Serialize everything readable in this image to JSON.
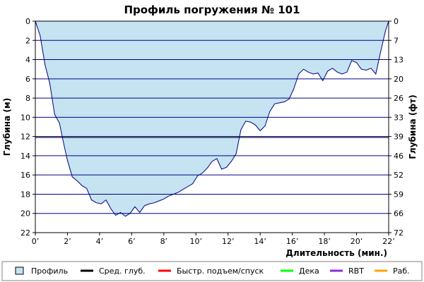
{
  "chart_data": {
    "type": "area",
    "title": "Профиль погружения № 101",
    "xlabel": "Длительность (мин.)",
    "ylabel_left": "Глубина (м)",
    "ylabel_right": "Глубина (фт)",
    "xlim": [
      0,
      22
    ],
    "ylim": [
      0,
      22
    ],
    "y_inverted": true,
    "grid": true,
    "x_ticks": [
      0,
      2,
      4,
      6,
      8,
      10,
      12,
      14,
      16,
      18,
      20,
      22
    ],
    "x_tick_labels": [
      "0’",
      "2’",
      "4’",
      "6’",
      "8’",
      "10’",
      "12’",
      "14’",
      "16’",
      "18’",
      "20’",
      "22’"
    ],
    "y_ticks": [
      0,
      2,
      4,
      6,
      8,
      10,
      12,
      14,
      16,
      18,
      20,
      22
    ],
    "y_tick_labels": [
      "0",
      "2",
      "4",
      "6",
      "8",
      "10",
      "12",
      "14",
      "16",
      "18",
      "20",
      "22"
    ],
    "y_right_tick_labels": [
      "0",
      "7",
      "13",
      "20",
      "26",
      "33",
      "39",
      "46",
      "52",
      "59",
      "66",
      "72"
    ],
    "average_depth": 12.1,
    "colors": {
      "profile_fill": "#c5e3f0",
      "profile_line": "#00007f",
      "grid": "#00008b",
      "avg_depth": "#000000",
      "fast_ascent": "#ff0000",
      "deco": "#00ff00",
      "rbt": "#8a2be2",
      "work": "#ffa500"
    },
    "series": [
      {
        "name": "Профиль",
        "x": [
          0,
          0.3,
          0.6,
          0.9,
          1.2,
          1.5,
          1.8,
          2.0,
          2.3,
          2.6,
          2.9,
          3.2,
          3.5,
          3.8,
          4.1,
          4.4,
          4.7,
          5.0,
          5.3,
          5.6,
          5.9,
          6.2,
          6.5,
          6.8,
          7.1,
          7.4,
          7.7,
          8.0,
          8.3,
          8.6,
          8.9,
          9.2,
          9.5,
          9.8,
          10.1,
          10.4,
          10.7,
          11.0,
          11.3,
          11.6,
          11.9,
          12.2,
          12.5,
          12.8,
          13.1,
          13.4,
          13.7,
          14.0,
          14.3,
          14.6,
          14.9,
          15.2,
          15.5,
          15.8,
          16.1,
          16.4,
          16.7,
          17.0,
          17.3,
          17.6,
          17.9,
          18.2,
          18.5,
          18.8,
          19.1,
          19.4,
          19.7,
          20.0,
          20.3,
          20.6,
          20.9,
          21.2,
          21.5,
          21.8,
          22.0
        ],
        "depth": [
          0,
          1.5,
          4.5,
          6.5,
          9.7,
          10.6,
          13.0,
          14.5,
          16.2,
          16.6,
          17.1,
          17.4,
          18.6,
          18.9,
          19.0,
          18.6,
          19.5,
          20.2,
          19.9,
          20.3,
          20.0,
          19.3,
          19.9,
          19.2,
          19.0,
          18.9,
          18.7,
          18.5,
          18.2,
          18.0,
          17.8,
          17.5,
          17.2,
          16.9,
          16.1,
          15.8,
          15.3,
          14.6,
          14.3,
          15.4,
          15.2,
          14.6,
          13.8,
          11.3,
          10.4,
          10.5,
          10.8,
          11.4,
          10.9,
          9.4,
          8.6,
          8.5,
          8.4,
          8.1,
          7.0,
          5.5,
          5.0,
          5.3,
          5.5,
          5.4,
          6.2,
          5.2,
          4.9,
          5.3,
          5.5,
          5.3,
          4.1,
          4.3,
          5.0,
          5.1,
          4.9,
          5.5,
          3.2,
          1.0,
          0
        ]
      }
    ],
    "legend": {
      "position": "bottom",
      "items": [
        {
          "label": "Профиль",
          "kind": "box",
          "color": "#c5e3f0"
        },
        {
          "label": "Сред. глуб.",
          "kind": "line",
          "color": "#000000"
        },
        {
          "label": "Быстр. подъем/спуск",
          "kind": "line",
          "color": "#ff0000"
        },
        {
          "label": "Дека",
          "kind": "line",
          "color": "#00ff00"
        },
        {
          "label": "RBT",
          "kind": "line",
          "color": "#8a2be2"
        },
        {
          "label": "Раб.",
          "kind": "line",
          "color": "#ffa500"
        }
      ]
    }
  }
}
